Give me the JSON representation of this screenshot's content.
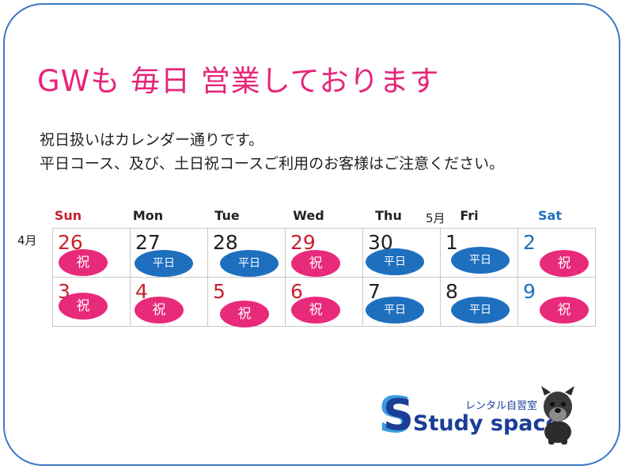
{
  "heading": "GWも 毎日 営業しております",
  "notice": {
    "line1": "祝日扱いはカレンダー通りです。",
    "line2": "平日コース、及び、土日祝コースご利用のお客様はご注意ください。"
  },
  "weekdays": [
    "Sun",
    "Mon",
    "Tue",
    "Wed",
    "Thu",
    "Fri",
    "Sat"
  ],
  "month_labels": {
    "april": "4月",
    "may": "5月"
  },
  "legend": {
    "holiday": "祝",
    "weekday": "平日"
  },
  "calendar": {
    "weeks": [
      [
        {
          "day": "26",
          "type": "holiday"
        },
        {
          "day": "27",
          "type": "weekday"
        },
        {
          "day": "28",
          "type": "weekday"
        },
        {
          "day": "29",
          "type": "holiday"
        },
        {
          "day": "30",
          "type": "weekday"
        },
        {
          "day": "1",
          "type": "weekday"
        },
        {
          "day": "2",
          "type": "holiday"
        }
      ],
      [
        {
          "day": "3",
          "type": "holiday"
        },
        {
          "day": "4",
          "type": "holiday"
        },
        {
          "day": "5",
          "type": "holiday"
        },
        {
          "day": "6",
          "type": "holiday"
        },
        {
          "day": "7",
          "type": "weekday"
        },
        {
          "day": "8",
          "type": "weekday"
        },
        {
          "day": "9",
          "type": "holiday"
        }
      ]
    ]
  },
  "brand": {
    "name": "Study space",
    "tagline": "レンタル自習室",
    "mascot_icon": "dog-mascot-icon"
  },
  "colors": {
    "frame": "#3a78c2",
    "heading": "#e6257a",
    "holiday_pill": "#e82a7a",
    "weekday_pill": "#1f6fbf",
    "sunday_red": "#c8202f",
    "saturday_blue": "#1f6fbf",
    "weekday_text": "#222222",
    "brand_navy": "#1a3e96",
    "brand_light": "#3a9be0"
  }
}
